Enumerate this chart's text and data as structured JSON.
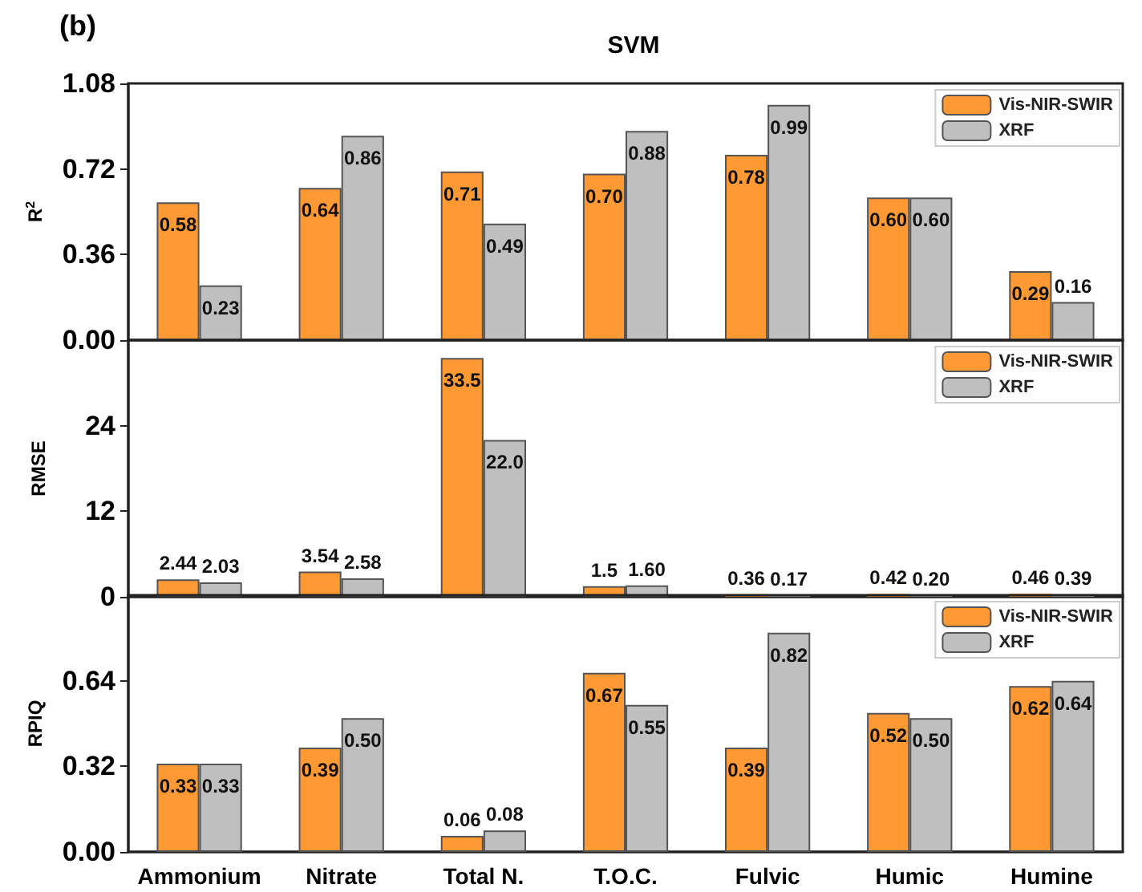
{
  "chart_data": [
    {
      "type": "bar",
      "title": "SVM",
      "annotations": [
        "(b)"
      ],
      "ylabel": "R$^{2}$",
      "categories": [
        null,
        null,
        null,
        null,
        null,
        null,
        null
      ],
      "ylim": [
        0,
        1.08
      ],
      "yticks": [
        {
          "value": 0,
          "label": "0.00"
        },
        0.36,
        0.72,
        1.08
      ],
      "tick_labels": "y",
      "legend": "top right",
      "grid": false,
      "series": [
        {
          "name": "Vis-NIR-SWIR",
          "color": "#ff9933",
          "values": [
            0.58,
            0.64,
            0.71,
            0.7,
            0.78,
            0.6,
            0.29
          ],
          "value_labels": [
            "0.58",
            "0.64",
            "0.71",
            "0.70",
            "0.78",
            "0.60",
            "0.29"
          ]
        },
        {
          "name": "XRF",
          "color": "#bfbfbf",
          "values": [
            0.23,
            0.86,
            0.49,
            0.88,
            0.99,
            0.6,
            0.16
          ],
          "value_labels": [
            "0.23",
            "0.86",
            "0.49",
            "0.88",
            "0.99",
            "0.60",
            "0.16"
          ]
        }
      ]
    },
    {
      "type": "bar",
      "ylabel": "RMSE",
      "categories": [
        null,
        null,
        null,
        null,
        null,
        null,
        null
      ],
      "ylim": [
        0,
        36
      ],
      "yticks": [
        0,
        12,
        24
      ],
      "tick_labels": "y",
      "legend": "top right",
      "grid": false,
      "series": [
        {
          "name": "Vis-NIR-SWIR",
          "color": "#ff9933",
          "values": [
            2.44,
            3.54,
            33.5,
            1.5,
            0.36,
            0.42,
            0.46
          ],
          "value_labels": [
            "2.44",
            "3.54",
            "33.5",
            "1.5",
            "0.36",
            "0.42",
            "0.46"
          ]
        },
        {
          "name": "XRF",
          "color": "#bfbfbf",
          "values": [
            2.03,
            2.58,
            22.0,
            1.6,
            0.17,
            0.2,
            0.39
          ],
          "value_labels": [
            "2.03",
            "2.58",
            "22.0",
            "1.60",
            "0.17",
            "0.20",
            "0.39"
          ]
        }
      ]
    },
    {
      "type": "bar",
      "ylabel": "RPIQ",
      "categories": [
        "Ammonium",
        "Nitrate",
        "Total N.",
        "T.O.C.",
        "Fulvic",
        "Humic",
        "Humine"
      ],
      "ylim": [
        0,
        0.96
      ],
      "yticks": [
        {
          "value": 0,
          "label": "0.00"
        },
        0.32,
        0.64
      ],
      "legend": "top right",
      "grid": false,
      "series": [
        {
          "name": "Vis-NIR-SWIR",
          "color": "#ff9933",
          "values": [
            0.33,
            0.39,
            0.06,
            0.67,
            0.39,
            0.52,
            0.62
          ],
          "value_labels": [
            "0.33",
            "0.39",
            "0.06",
            "0.67",
            "0.39",
            "0.52",
            "0.62"
          ]
        },
        {
          "name": "XRF",
          "color": "#bfbfbf",
          "values": [
            0.33,
            0.5,
            0.08,
            0.55,
            0.82,
            0.5,
            0.64
          ],
          "value_labels": [
            "0.33",
            "0.50",
            "0.08",
            "0.55",
            "0.82",
            "0.50",
            "0.64"
          ]
        }
      ]
    }
  ]
}
